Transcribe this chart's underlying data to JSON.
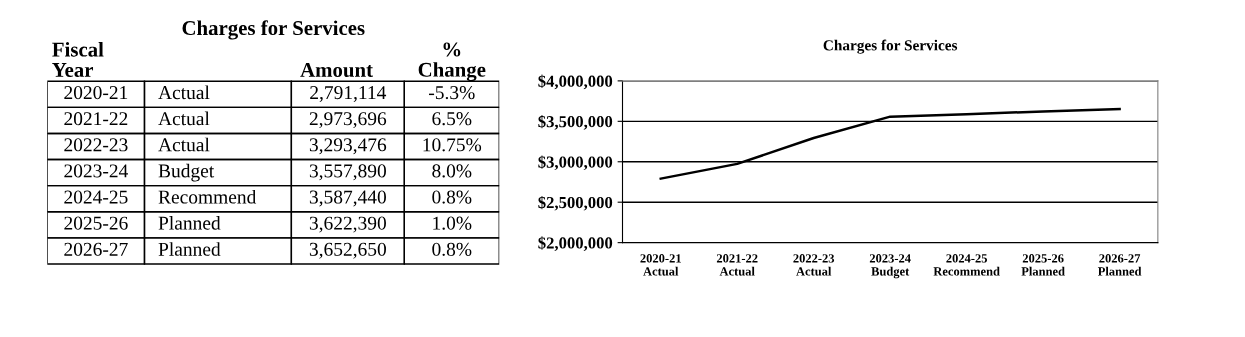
{
  "chart_data": [
    {
      "type": "other",
      "title": "Charges for Services",
      "annotations": [
        "Fiscal\nYear",
        "Amount",
        "%\nChange",
        "2020-21",
        "Actual",
        "2,791,114",
        "-5.3%",
        "2021-22",
        "Actual",
        "2,973,696",
        "6.5%",
        "2022-23",
        "Actual",
        "3,293,476",
        "10.75%",
        "2023-24",
        "Budget",
        "3,557,890",
        "8.0%",
        "2024-25",
        "Recommend",
        "3,587,440",
        "0.8%",
        "2025-26",
        "Planned",
        "3,622,390",
        "1.0%",
        "2026-27",
        "Planned",
        "3,652,650",
        "0.8%"
      ]
    },
    {
      "type": "line",
      "title": "Charges for Services",
      "categories": [
        "2020-21\nActual",
        "2021-22\nActual",
        "2022-23\nActual",
        "2023-24\nBudget",
        "2024-25\nRecommend",
        "2025-26\nPlanned",
        "2026-27\nPlanned"
      ],
      "series": [
        {
          "color": "#000000",
          "values": [
            2791114,
            2973696,
            3293476,
            3557890,
            3587440,
            3622390,
            3652650
          ]
        }
      ],
      "ylim": [
        2000000,
        4000000
      ],
      "yticks": [
        {
          "value": 2000000,
          "label": "$2,000,000"
        },
        {
          "value": 2500000,
          "label": "$2,500,000"
        },
        {
          "value": 3000000,
          "label": "$3,000,000"
        },
        {
          "value": 3500000,
          "label": "$3,500,000"
        },
        {
          "value": 4000000,
          "label": "$4,000,000"
        }
      ],
      "grid": "y",
      "marker": "none",
      "line_style": "solid"
    }
  ]
}
